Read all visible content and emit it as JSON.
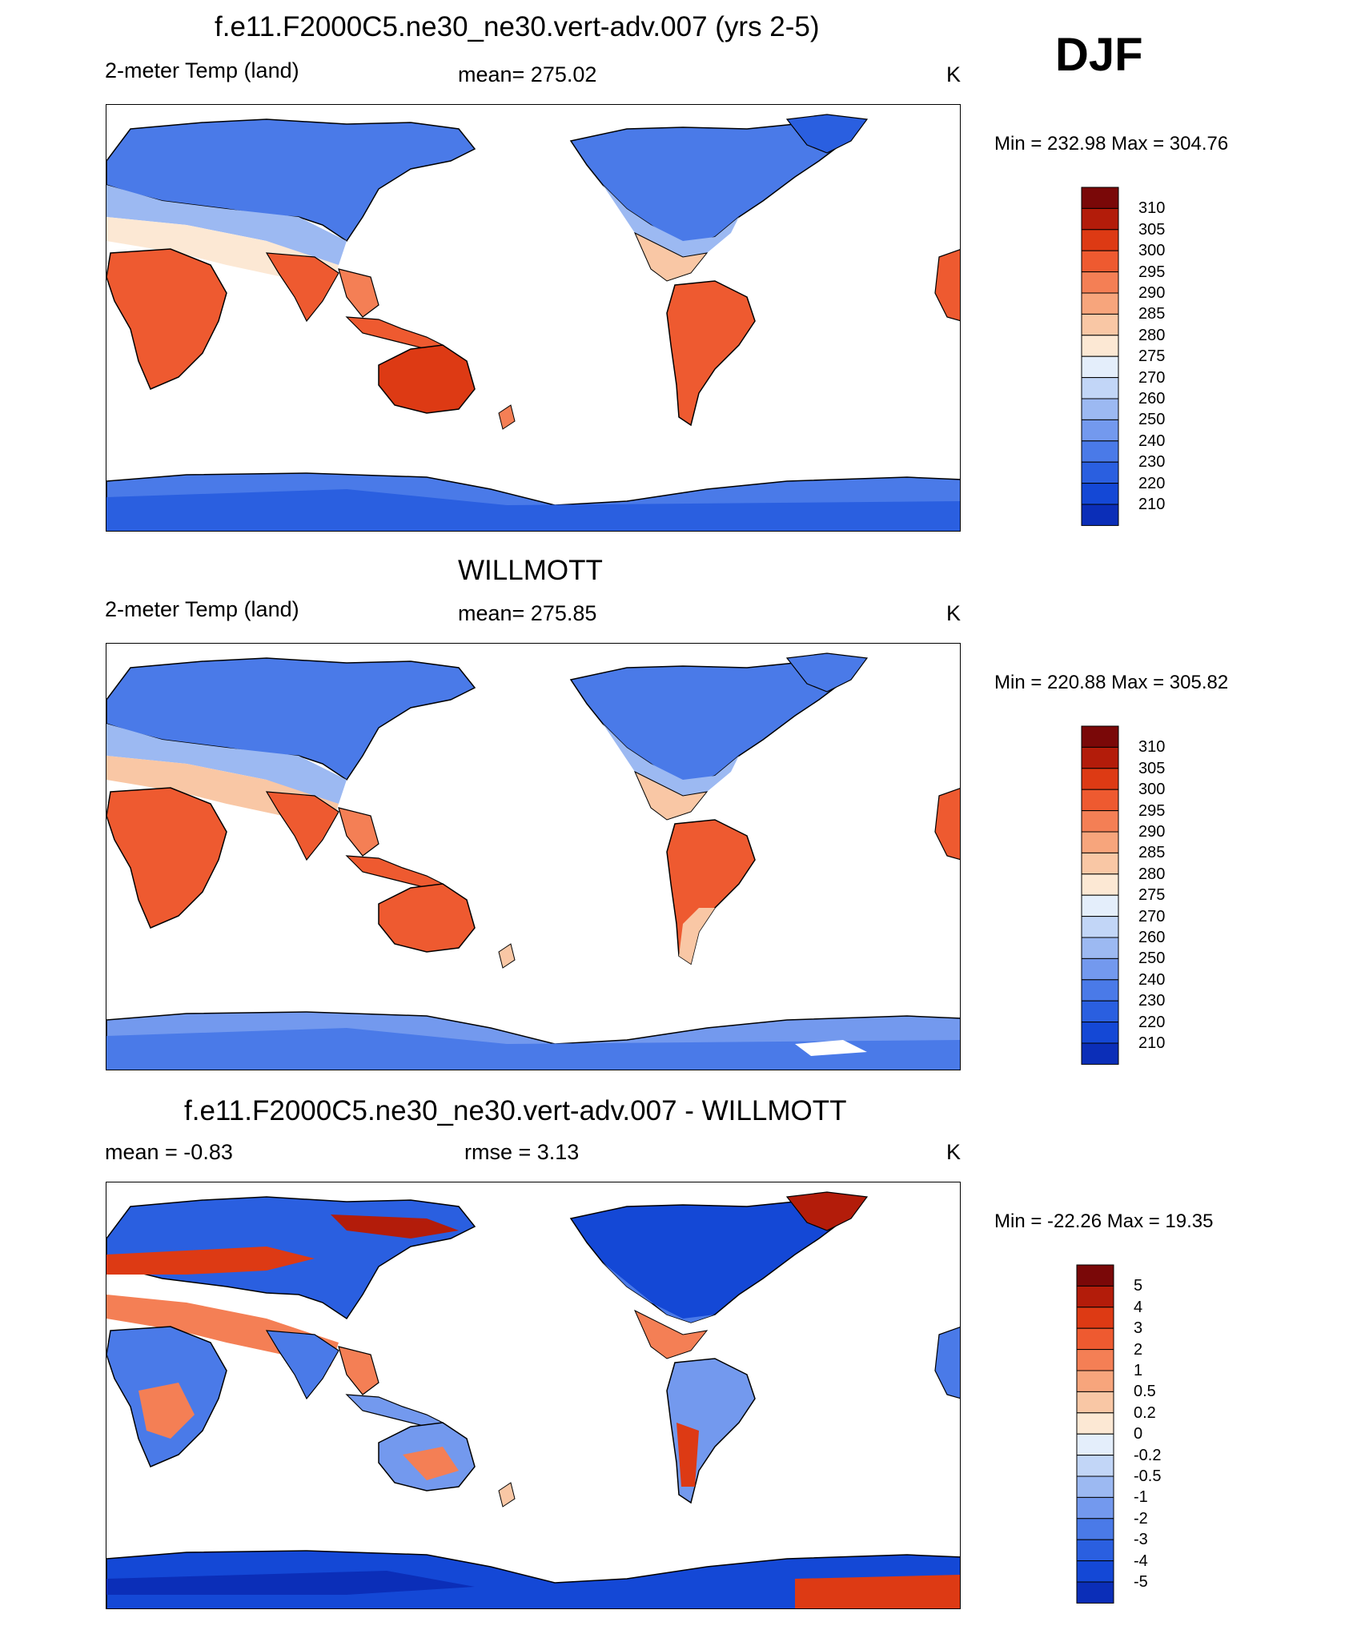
{
  "season": "DJF",
  "panels": [
    {
      "id": "model",
      "title": "f.e11.F2000C5.ne30_ne30.vert-adv.007 (yrs 2-5)",
      "left_label": "2-meter Temp (land)",
      "center_label": "mean= 275.02",
      "units": "K",
      "range_text": "Min = 232.98 Max = 304.76",
      "colorbar_labels": [
        "310",
        "305",
        "300",
        "295",
        "290",
        "285",
        "280",
        "275",
        "270",
        "260",
        "250",
        "240",
        "230",
        "220",
        "210"
      ]
    },
    {
      "id": "obs",
      "title": "WILLMOTT",
      "left_label": "2-meter Temp (land)",
      "center_label": "mean= 275.85",
      "units": "K",
      "range_text": "Min = 220.88 Max = 305.82",
      "colorbar_labels": [
        "310",
        "305",
        "300",
        "295",
        "290",
        "285",
        "280",
        "275",
        "270",
        "260",
        "250",
        "240",
        "230",
        "220",
        "210"
      ]
    },
    {
      "id": "diff",
      "title": "f.e11.F2000C5.ne30_ne30.vert-adv.007 - WILLMOTT",
      "left_label": "mean =  -0.83",
      "center_label": "rmse =   3.13",
      "units": "K",
      "range_text": "Min = -22.26 Max =  19.35",
      "colorbar_labels": [
        "5",
        "4",
        "3",
        "2",
        "1",
        "0.5",
        "0.2",
        "0",
        "-0.2",
        "-0.5",
        "-1",
        "-2",
        "-3",
        "-4",
        "-5"
      ]
    }
  ],
  "colors": {
    "scale": [
      "#0a0a80",
      "#0b2eb8",
      "#1448d6",
      "#2a5fe0",
      "#4a7ae8",
      "#7399ee",
      "#9cb9f2",
      "#c2d6f7",
      "#e4eefb",
      "#fce8d4",
      "#f9c7a5",
      "#f7a57c",
      "#f47f55",
      "#ee5a30",
      "#dd3a14",
      "#b31c0a",
      "#7a0808"
    ],
    "coast": "#000000"
  }
}
